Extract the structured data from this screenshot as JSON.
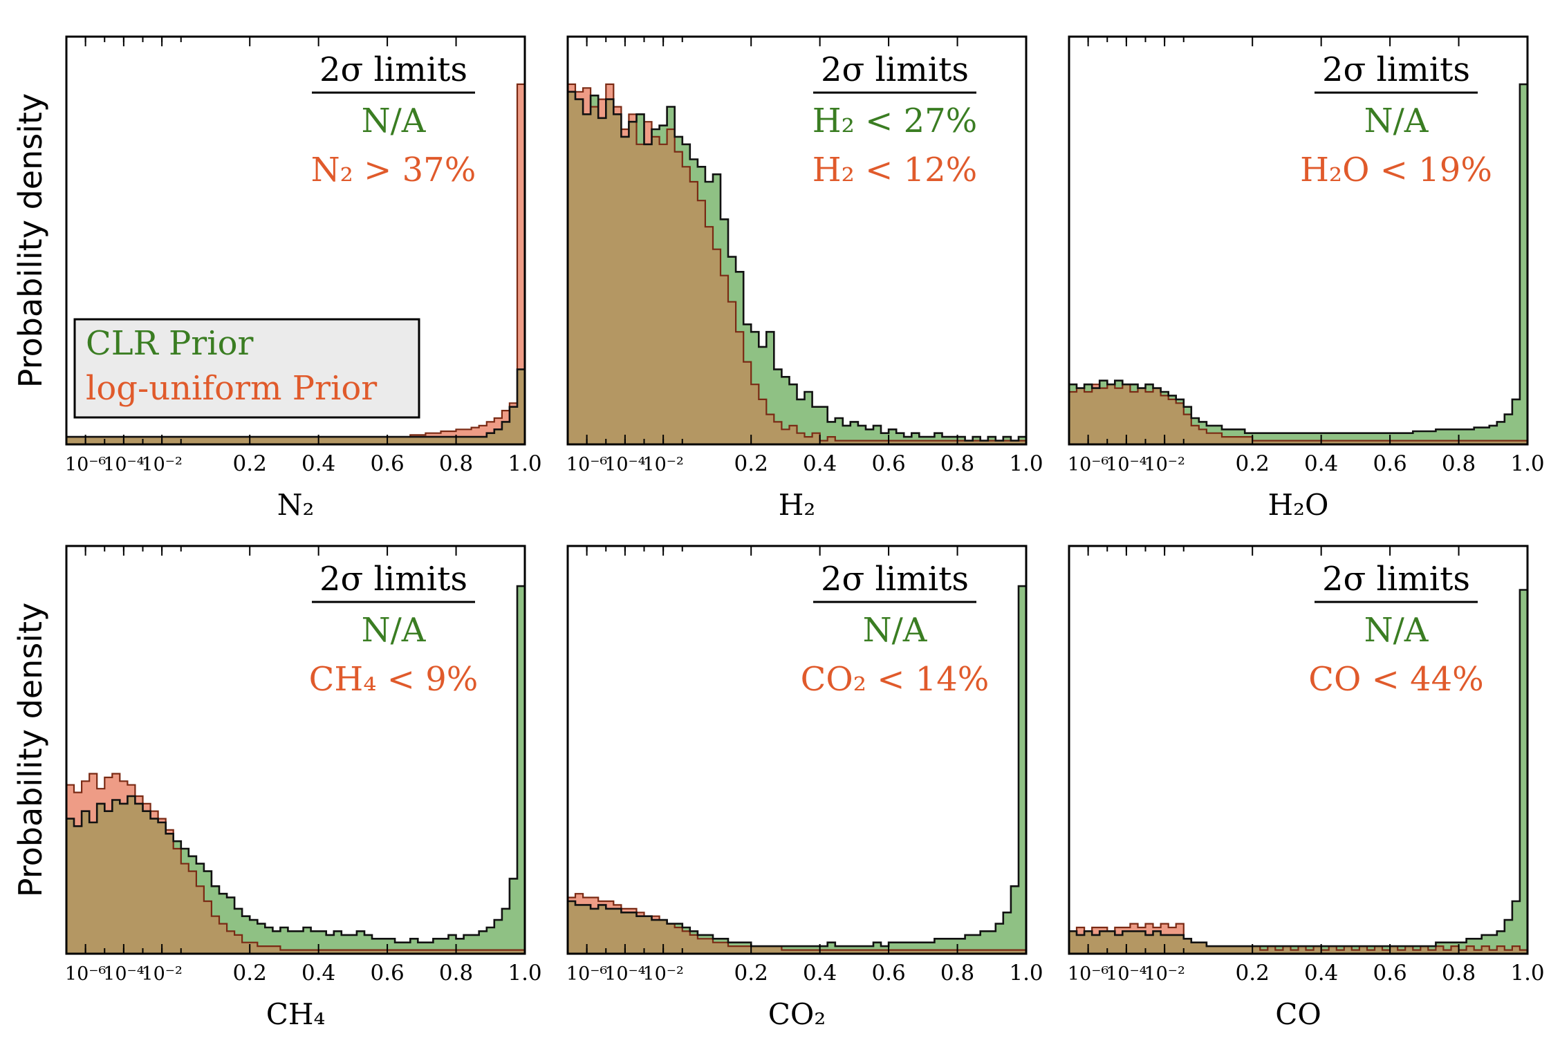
{
  "figure": {
    "ylabel": "Probability density",
    "limits_title": "2σ limits",
    "legend": [
      {
        "label": "CLR Prior",
        "color": "#3a7d22"
      },
      {
        "label": "log-uniform Prior",
        "color": "#e05a2b"
      }
    ],
    "colors": {
      "clr_fill": "#8fc184",
      "lu_fill": "#ee9c86",
      "overlap_fill": "#b49763",
      "clr_text": "#3a7d22",
      "lu_text": "#e05a2b",
      "legend_bg": "#ebebeb"
    },
    "x_ticks": [
      "10⁻⁶",
      "10⁻⁴",
      "10⁻²",
      "0.2",
      "0.4",
      "0.6",
      "0.8",
      "1.0"
    ]
  },
  "chart_data": [
    {
      "type": "histogram",
      "xlabel": "N₂",
      "clr_limit": "N/A",
      "lu_limit": "N₂ > 37%",
      "clr": [
        [
          0.02,
          0.02,
          0.02,
          0.02,
          0.02,
          0.02,
          0.02,
          0.02,
          0.02,
          0.02,
          0.02,
          0.02,
          0.02,
          0.02,
          0.02
        ],
        [
          0.02,
          0.02,
          0.02,
          0.02,
          0.02,
          0.02,
          0.02,
          0.02,
          0.02,
          0.02,
          0.02,
          0.02,
          0.02,
          0.02,
          0.02,
          0.02,
          0.02,
          0.02,
          0.02,
          0.02,
          0.02,
          0.02,
          0.02,
          0.02,
          0.02,
          0.02,
          0.02,
          0.02,
          0.02,
          0.02,
          0.02,
          0.02,
          0.02,
          0.02,
          0.02,
          0.02,
          0.02,
          0.02,
          0.02,
          0.02,
          0.03,
          0.04,
          0.06,
          0.1,
          0.2
        ]
      ],
      "lu": [
        [
          0.02,
          0.02,
          0.02,
          0.02,
          0.02,
          0.02,
          0.02,
          0.02,
          0.02,
          0.02,
          0.02,
          0.02,
          0.02,
          0.02,
          0.02
        ],
        [
          0.02,
          0.02,
          0.02,
          0.02,
          0.02,
          0.02,
          0.02,
          0.02,
          0.02,
          0.02,
          0.02,
          0.02,
          0.02,
          0.02,
          0.02,
          0.02,
          0.02,
          0.02,
          0.02,
          0.02,
          0.02,
          0.02,
          0.02,
          0.02,
          0.02,
          0.02,
          0.02,
          0.02,
          0.02,
          0.02,
          0.025,
          0.025,
          0.03,
          0.03,
          0.035,
          0.035,
          0.04,
          0.04,
          0.045,
          0.05,
          0.06,
          0.07,
          0.09,
          0.11,
          0.96
        ]
      ]
    },
    {
      "type": "histogram",
      "xlabel": "H₂",
      "clr_limit": "H₂ < 27%",
      "lu_limit": "H₂ < 12%",
      "clr": [
        [
          0.94,
          0.92,
          0.88,
          0.93,
          0.87,
          0.92,
          0.88,
          0.82,
          0.86,
          0.88,
          0.8,
          0.84,
          0.85,
          0.9,
          0.82
        ],
        [
          0.8,
          0.76,
          0.74,
          0.7,
          0.72,
          0.6,
          0.5,
          0.46,
          0.32,
          0.3,
          0.26,
          0.3,
          0.2,
          0.18,
          0.16,
          0.12,
          0.14,
          0.1,
          0.1,
          0.06,
          0.07,
          0.05,
          0.06,
          0.05,
          0.04,
          0.05,
          0.03,
          0.04,
          0.03,
          0.02,
          0.03,
          0.02,
          0.02,
          0.03,
          0.02,
          0.02,
          0.02,
          0.01,
          0.02,
          0.01,
          0.02,
          0.01,
          0.02,
          0.01,
          0.02
        ]
      ],
      "lu": [
        [
          0.96,
          0.94,
          0.95,
          0.9,
          0.92,
          0.96,
          0.9,
          0.84,
          0.88,
          0.8,
          0.86,
          0.82,
          0.8,
          0.84,
          0.78
        ],
        [
          0.74,
          0.7,
          0.65,
          0.58,
          0.52,
          0.45,
          0.38,
          0.3,
          0.22,
          0.16,
          0.12,
          0.08,
          0.06,
          0.04,
          0.05,
          0.03,
          0.02,
          0.03,
          0.01,
          0.02,
          0.01,
          0.01,
          0.01,
          0.01,
          0.01,
          0.01,
          0.01,
          0.01,
          0.01,
          0.01,
          0.01,
          0.01,
          0.01,
          0.01,
          0.01,
          0.01,
          0.01,
          0.01,
          0.01,
          0.01,
          0.01,
          0.01,
          0.01,
          0.01,
          0.01
        ]
      ]
    },
    {
      "type": "histogram",
      "xlabel": "H₂O",
      "clr_limit": "N/A",
      "lu_limit": "H₂O < 19%",
      "clr": [
        [
          0.16,
          0.15,
          0.16,
          0.15,
          0.17,
          0.16,
          0.17,
          0.16,
          0.16,
          0.15,
          0.16,
          0.15,
          0.14,
          0.13,
          0.12
        ],
        [
          0.1,
          0.07,
          0.06,
          0.05,
          0.05,
          0.04,
          0.04,
          0.04,
          0.03,
          0.03,
          0.03,
          0.03,
          0.03,
          0.03,
          0.03,
          0.03,
          0.03,
          0.03,
          0.03,
          0.03,
          0.03,
          0.03,
          0.03,
          0.03,
          0.03,
          0.03,
          0.03,
          0.03,
          0.03,
          0.03,
          0.035,
          0.035,
          0.035,
          0.04,
          0.04,
          0.04,
          0.04,
          0.04,
          0.045,
          0.045,
          0.05,
          0.06,
          0.08,
          0.12,
          0.96
        ]
      ],
      "lu": [
        [
          0.14,
          0.15,
          0.14,
          0.16,
          0.15,
          0.16,
          0.15,
          0.16,
          0.14,
          0.15,
          0.14,
          0.15,
          0.13,
          0.12,
          0.11
        ],
        [
          0.08,
          0.05,
          0.04,
          0.03,
          0.03,
          0.02,
          0.02,
          0.02,
          0.02,
          0.01,
          0.01,
          0.01,
          0.01,
          0.01,
          0.01,
          0.01,
          0.01,
          0.01,
          0.01,
          0.01,
          0.01,
          0.01,
          0.01,
          0.01,
          0.01,
          0.01,
          0.01,
          0.01,
          0.01,
          0.01,
          0.01,
          0.01,
          0.01,
          0.01,
          0.01,
          0.01,
          0.01,
          0.01,
          0.01,
          0.01,
          0.01,
          0.01,
          0.01,
          0.01,
          0.01
        ]
      ]
    },
    {
      "type": "histogram",
      "xlabel": "CH₄",
      "clr_limit": "N/A",
      "lu_limit": "CH₄ < 9%",
      "clr": [
        [
          0.36,
          0.34,
          0.38,
          0.35,
          0.4,
          0.38,
          0.41,
          0.4,
          0.42,
          0.4,
          0.38,
          0.36,
          0.35,
          0.32,
          0.3
        ],
        [
          0.28,
          0.26,
          0.24,
          0.22,
          0.18,
          0.16,
          0.15,
          0.12,
          0.1,
          0.09,
          0.08,
          0.07,
          0.06,
          0.07,
          0.06,
          0.06,
          0.07,
          0.06,
          0.06,
          0.05,
          0.06,
          0.05,
          0.05,
          0.06,
          0.05,
          0.04,
          0.04,
          0.04,
          0.03,
          0.03,
          0.04,
          0.03,
          0.03,
          0.04,
          0.04,
          0.05,
          0.04,
          0.05,
          0.05,
          0.06,
          0.07,
          0.09,
          0.12,
          0.2,
          0.98
        ]
      ],
      "lu": [
        [
          0.45,
          0.43,
          0.46,
          0.48,
          0.44,
          0.47,
          0.48,
          0.46,
          0.45,
          0.42,
          0.4,
          0.38,
          0.36,
          0.33,
          0.28
        ],
        [
          0.24,
          0.22,
          0.18,
          0.14,
          0.1,
          0.08,
          0.06,
          0.05,
          0.03,
          0.03,
          0.02,
          0.02,
          0.02,
          0.01,
          0.01,
          0.01,
          0.01,
          0.01,
          0.01,
          0.01,
          0.01,
          0.01,
          0.01,
          0.01,
          0.01,
          0.01,
          0.01,
          0.01,
          0.01,
          0.01,
          0.01,
          0.01,
          0.01,
          0.01,
          0.01,
          0.01,
          0.01,
          0.01,
          0.01,
          0.01,
          0.01,
          0.01,
          0.01,
          0.01,
          0.01
        ]
      ]
    },
    {
      "type": "histogram",
      "xlabel": "CO₂",
      "clr_limit": "N/A",
      "lu_limit": "CO₂ < 14%",
      "clr": [
        [
          0.14,
          0.13,
          0.13,
          0.12,
          0.13,
          0.12,
          0.12,
          0.11,
          0.11,
          0.1,
          0.1,
          0.09,
          0.09,
          0.08,
          0.08
        ],
        [
          0.07,
          0.06,
          0.05,
          0.05,
          0.04,
          0.04,
          0.03,
          0.03,
          0.03,
          0.02,
          0.02,
          0.02,
          0.02,
          0.02,
          0.02,
          0.02,
          0.02,
          0.02,
          0.02,
          0.03,
          0.02,
          0.02,
          0.02,
          0.02,
          0.02,
          0.03,
          0.02,
          0.03,
          0.03,
          0.03,
          0.03,
          0.03,
          0.03,
          0.04,
          0.04,
          0.04,
          0.04,
          0.05,
          0.05,
          0.06,
          0.06,
          0.08,
          0.11,
          0.18,
          0.98
        ]
      ],
      "lu": [
        [
          0.15,
          0.16,
          0.15,
          0.15,
          0.14,
          0.14,
          0.13,
          0.12,
          0.12,
          0.11,
          0.1,
          0.1,
          0.09,
          0.08,
          0.07
        ],
        [
          0.06,
          0.05,
          0.04,
          0.04,
          0.03,
          0.03,
          0.02,
          0.02,
          0.02,
          0.02,
          0.02,
          0.02,
          0.02,
          0.01,
          0.01,
          0.01,
          0.01,
          0.01,
          0.01,
          0.01,
          0.01,
          0.01,
          0.01,
          0.01,
          0.01,
          0.01,
          0.01,
          0.01,
          0.01,
          0.01,
          0.01,
          0.01,
          0.01,
          0.01,
          0.01,
          0.01,
          0.01,
          0.01,
          0.01,
          0.01,
          0.01,
          0.01,
          0.01,
          0.01,
          0.01
        ]
      ]
    },
    {
      "type": "histogram",
      "xlabel": "CO",
      "clr_limit": "N/A",
      "lu_limit": "CO < 44%",
      "clr": [
        [
          0.06,
          0.05,
          0.06,
          0.05,
          0.06,
          0.06,
          0.05,
          0.06,
          0.06,
          0.06,
          0.05,
          0.06,
          0.05,
          0.05,
          0.05
        ],
        [
          0.04,
          0.03,
          0.03,
          0.02,
          0.02,
          0.02,
          0.02,
          0.02,
          0.02,
          0.02,
          0.02,
          0.02,
          0.02,
          0.02,
          0.02,
          0.02,
          0.02,
          0.02,
          0.02,
          0.02,
          0.02,
          0.02,
          0.02,
          0.02,
          0.02,
          0.02,
          0.02,
          0.02,
          0.02,
          0.02,
          0.02,
          0.02,
          0.02,
          0.03,
          0.03,
          0.03,
          0.03,
          0.04,
          0.04,
          0.05,
          0.05,
          0.06,
          0.09,
          0.14,
          0.97
        ]
      ],
      "lu": [
        [
          0.06,
          0.07,
          0.06,
          0.07,
          0.07,
          0.06,
          0.07,
          0.07,
          0.08,
          0.07,
          0.08,
          0.07,
          0.08,
          0.07,
          0.08
        ],
        [
          0.04,
          0.03,
          0.03,
          0.02,
          0.02,
          0.02,
          0.02,
          0.02,
          0.02,
          0.02,
          0.01,
          0.02,
          0.01,
          0.02,
          0.01,
          0.02,
          0.01,
          0.02,
          0.01,
          0.02,
          0.01,
          0.02,
          0.01,
          0.02,
          0.01,
          0.02,
          0.01,
          0.02,
          0.01,
          0.02,
          0.01,
          0.02,
          0.01,
          0.02,
          0.01,
          0.02,
          0.01,
          0.02,
          0.01,
          0.02,
          0.01,
          0.02,
          0.01,
          0.02,
          0.01
        ]
      ]
    }
  ]
}
